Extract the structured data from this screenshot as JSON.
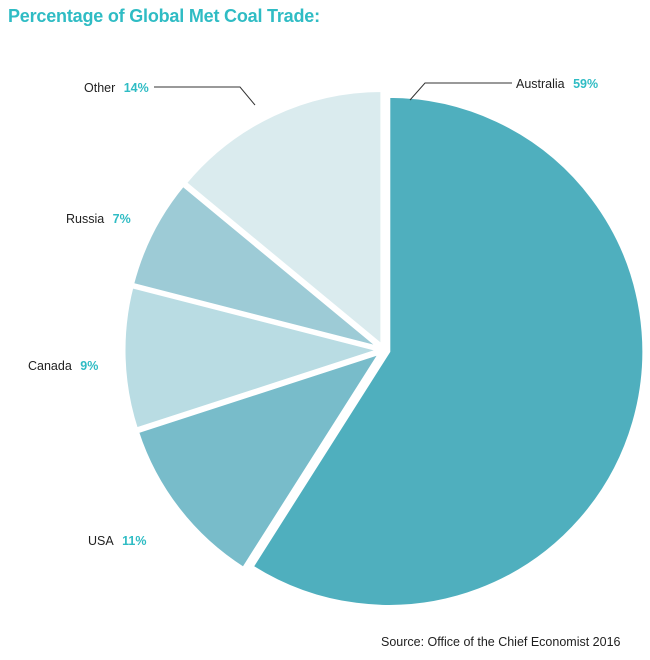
{
  "title": "Percentage of Global Met Coal Trade:",
  "source": "Source: Office of the Chief Economist 2016",
  "colors": {
    "accent": "#2fbcc4",
    "australia": "#4fafbe",
    "usa": "#78bcca",
    "canada": "#b9dce3",
    "russia": "#9dcbd6",
    "other": "#daebee"
  },
  "chart_data": {
    "type": "pie",
    "title": "Percentage of Global Met Coal Trade:",
    "slices": [
      {
        "label": "Australia",
        "value": 59,
        "value_label": "59%"
      },
      {
        "label": "USA",
        "value": 11,
        "value_label": "11%"
      },
      {
        "label": "Canada",
        "value": 9,
        "value_label": "9%"
      },
      {
        "label": "Russia",
        "value": 7,
        "value_label": "7%"
      },
      {
        "label": "Other",
        "value": 14,
        "value_label": "14%"
      }
    ]
  }
}
